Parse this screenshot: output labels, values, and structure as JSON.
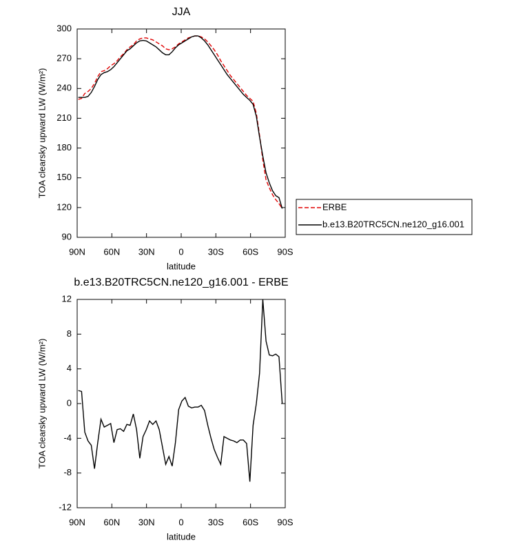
{
  "chart_data": [
    {
      "type": "line",
      "title": "JJA",
      "xlabel": "latitude",
      "ylabel": "TOA clearsky upward LW (W/m²)",
      "xlim": [
        90,
        -90
      ],
      "xticks": [
        {
          "value": 90,
          "label": "90N"
        },
        {
          "value": 60,
          "label": "60N"
        },
        {
          "value": 30,
          "label": "30N"
        },
        0,
        {
          "value": -30,
          "label": "30S"
        },
        {
          "value": -60,
          "label": "60S"
        },
        {
          "value": -90,
          "label": "90S"
        }
      ],
      "ylim": [
        90,
        300
      ],
      "yticks": [
        90,
        120,
        150,
        180,
        210,
        240,
        270,
        300
      ],
      "legend": "right",
      "x": [
        89,
        86.2,
        83.4,
        80.6,
        77.8,
        75,
        72.2,
        69.4,
        66.6,
        63.8,
        61,
        58.2,
        55.4,
        52.6,
        49.8,
        47,
        44.2,
        41.4,
        38.6,
        35.8,
        33,
        30.2,
        27.4,
        24.6,
        21.8,
        19,
        16.2,
        13.4,
        10.6,
        7.8,
        5,
        2.2,
        -0.6,
        -3.4,
        -6.2,
        -9,
        -11.8,
        -14.6,
        -17.4,
        -20.2,
        -23,
        -25.8,
        -28.6,
        -31.4,
        -34.2,
        -37,
        -39.8,
        -42.6,
        -45.4,
        -48.2,
        -51,
        -53.8,
        -56.6,
        -59.4,
        -62.2,
        -65,
        -67.8,
        -70.6,
        -73.4,
        -76.2,
        -79,
        -81.8,
        -84.6,
        -87.4
      ],
      "series": [
        {
          "name": "ERBE",
          "color": "#e00000",
          "style": "dashed",
          "values": [
            229,
            230,
            235,
            237,
            240,
            245,
            252,
            257,
            258,
            260,
            263,
            265,
            268,
            272,
            275,
            279,
            282,
            284,
            288,
            290,
            291,
            291,
            290,
            289,
            287,
            285,
            283,
            280,
            279,
            280,
            282,
            285,
            287,
            289,
            291,
            292,
            293,
            293,
            292,
            290,
            287,
            283,
            279,
            274,
            268,
            263,
            258,
            253,
            249,
            245,
            241,
            237,
            233,
            230,
            227,
            215,
            193,
            168,
            148,
            140,
            133,
            128,
            124,
            119
          ]
        },
        {
          "name": "b.e13.B20TRC5CN.ne120_g16.001",
          "color": "#000000",
          "style": "solid",
          "values": [
            231,
            231,
            231,
            232,
            236,
            242,
            249,
            254,
            256,
            257,
            259,
            262,
            266,
            270,
            274,
            278,
            280,
            283,
            286,
            288,
            288.5,
            288,
            286,
            284,
            282,
            279,
            276,
            274,
            274,
            277,
            281,
            284,
            286,
            288,
            290,
            292,
            293,
            293,
            291,
            288,
            284,
            279,
            274,
            269,
            264,
            259,
            254,
            250,
            246,
            242,
            238,
            234,
            231,
            228,
            224,
            212,
            191,
            172,
            155,
            145,
            137,
            132,
            130,
            119
          ]
        }
      ]
    },
    {
      "type": "line",
      "title": "b.e13.B20TRC5CN.ne120_g16.001 - ERBE",
      "xlabel": "latitude",
      "ylabel": "TOA clearsky upward LW (W/m²)",
      "xlim": [
        90,
        -90
      ],
      "xticks": [
        {
          "value": 90,
          "label": "90N"
        },
        {
          "value": 60,
          "label": "60N"
        },
        {
          "value": 30,
          "label": "30N"
        },
        0,
        {
          "value": -30,
          "label": "30S"
        },
        {
          "value": -60,
          "label": "60S"
        },
        {
          "value": -90,
          "label": "90S"
        }
      ],
      "ylim": [
        -12,
        12
      ],
      "yticks": [
        -12,
        -8,
        -4,
        0,
        4,
        8,
        12
      ],
      "x": [
        89,
        86.2,
        83.4,
        80.6,
        77.8,
        75,
        72.2,
        69.4,
        66.6,
        63.8,
        61,
        58.2,
        55.4,
        52.6,
        49.8,
        47,
        44.2,
        41.4,
        38.6,
        35.8,
        33,
        30.2,
        27.4,
        24.6,
        21.8,
        19,
        16.2,
        13.4,
        10.6,
        7.8,
        5,
        2.2,
        -0.6,
        -3.4,
        -6.2,
        -9,
        -11.8,
        -14.6,
        -17.4,
        -20.2,
        -23,
        -25.8,
        -28.6,
        -31.4,
        -34.2,
        -37,
        -39.8,
        -42.6,
        -45.4,
        -48.2,
        -51,
        -53.8,
        -56.6,
        -59.4,
        -62.2,
        -65,
        -67.8,
        -70.6,
        -73.4,
        -76.2,
        -79,
        -81.8,
        -84.6,
        -87.4
      ],
      "series": [
        {
          "color": "#000000",
          "style": "solid",
          "values": [
            1.5,
            1.4,
            -3.3,
            -4.3,
            -4.8,
            -7.5,
            -4.5,
            -1.8,
            -2.7,
            -2.5,
            -2.3,
            -4.5,
            -3.0,
            -2.9,
            -3.2,
            -2.4,
            -2.5,
            -1.2,
            -3.0,
            -6.3,
            -3.8,
            -3.0,
            -2.0,
            -2.4,
            -2.0,
            -3.0,
            -5.0,
            -7.0,
            -6.1,
            -7.2,
            -4.5,
            -0.7,
            0.3,
            0.7,
            -0.3,
            -0.5,
            -0.4,
            -0.4,
            -0.2,
            -0.8,
            -2.5,
            -4.0,
            -5.3,
            -6.2,
            -7.0,
            -3.8,
            -4.0,
            -4.2,
            -4.3,
            -4.5,
            -4.2,
            -4.2,
            -4.6,
            -9.0,
            -2.5,
            0.0,
            3.5,
            12.0,
            7.2,
            5.6,
            5.5,
            5.7,
            5.4,
            0.0
          ]
        }
      ]
    }
  ]
}
